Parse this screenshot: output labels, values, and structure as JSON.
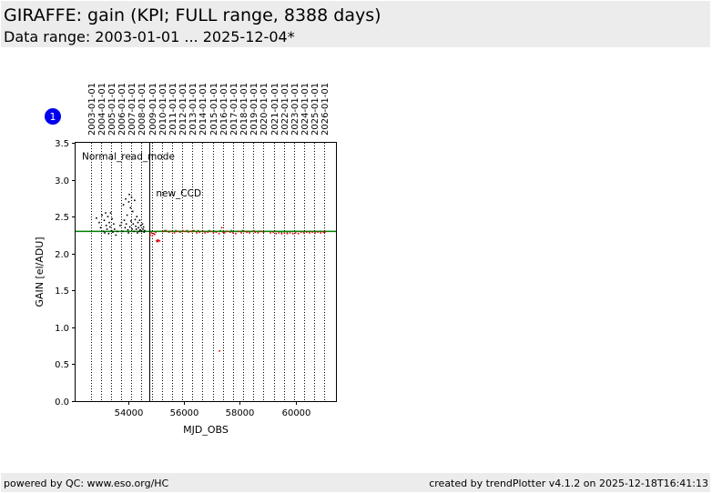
{
  "header": {
    "title": "GIRAFFE: gain (KPI; FULL range, 8388 days)",
    "subtitle": "Data range: 2003-01-01 ... 2025-12-04*"
  },
  "footer": {
    "left": "powered by QC: www.eso.org/HC",
    "right": "created by trendPlotter v4.1.2 on 2025-12-18T16:41:13"
  },
  "badge": "1",
  "chart_data": {
    "type": "scatter",
    "xlabel": "MJD_OBS",
    "ylabel": "GAIN [el/ADU]",
    "xlim": [
      52100,
      61450
    ],
    "ylim": [
      0,
      3.5
    ],
    "x_ticks": [
      54000,
      56000,
      58000,
      60000
    ],
    "y_ticks": [
      0.0,
      0.5,
      1.0,
      1.5,
      2.0,
      2.5,
      3.0,
      3.5
    ],
    "date_markers": [
      {
        "label": "2003-01-01",
        "mjd": 52640
      },
      {
        "label": "2004-01-01",
        "mjd": 53005
      },
      {
        "label": "2005-01-01",
        "mjd": 53371
      },
      {
        "label": "2006-01-01",
        "mjd": 53736
      },
      {
        "label": "2007-01-01",
        "mjd": 54101
      },
      {
        "label": "2008-01-01",
        "mjd": 54466
      },
      {
        "label": "2009-01-01",
        "mjd": 54832
      },
      {
        "label": "2010-01-01",
        "mjd": 55197
      },
      {
        "label": "2011-01-01",
        "mjd": 55562
      },
      {
        "label": "2012-01-01",
        "mjd": 55927
      },
      {
        "label": "2013-01-01",
        "mjd": 56293
      },
      {
        "label": "2014-01-01",
        "mjd": 56658
      },
      {
        "label": "2015-01-01",
        "mjd": 57023
      },
      {
        "label": "2016-01-01",
        "mjd": 57388
      },
      {
        "label": "2017-01-01",
        "mjd": 57754
      },
      {
        "label": "2018-01-01",
        "mjd": 58119
      },
      {
        "label": "2019-01-01",
        "mjd": 58484
      },
      {
        "label": "2020-01-01",
        "mjd": 58849
      },
      {
        "label": "2021-01-01",
        "mjd": 59215
      },
      {
        "label": "2022-01-01",
        "mjd": 59580
      },
      {
        "label": "2023-01-01",
        "mjd": 59945
      },
      {
        "label": "2024-01-01",
        "mjd": 60310
      },
      {
        "label": "2025-01-01",
        "mjd": 60676
      },
      {
        "label": "2026-01-01",
        "mjd": 61041
      }
    ],
    "events": [
      {
        "label": "Normal_read_mode",
        "mjd": 52100,
        "y": 3.32
      },
      {
        "label": "new_CCD",
        "mjd": 54760,
        "y": 2.82
      }
    ],
    "reference_line": {
      "y": 2.3,
      "color": "#008000"
    },
    "grid": false,
    "legend": "none",
    "series": [
      {
        "color": "#000000",
        "points": [
          [
            52850,
            2.48
          ],
          [
            52950,
            2.42
          ],
          [
            53000,
            2.35
          ],
          [
            53050,
            2.52
          ],
          [
            53100,
            2.3
          ],
          [
            53130,
            2.45
          ],
          [
            53150,
            2.28
          ],
          [
            53180,
            2.55
          ],
          [
            53200,
            2.38
          ],
          [
            53230,
            2.33
          ],
          [
            53260,
            2.5
          ],
          [
            53290,
            2.27
          ],
          [
            53310,
            2.42
          ],
          [
            53340,
            2.36
          ],
          [
            53360,
            2.55
          ],
          [
            53390,
            2.31
          ],
          [
            53410,
            2.47
          ],
          [
            53440,
            2.29
          ],
          [
            53470,
            2.4
          ],
          [
            53500,
            2.33
          ],
          [
            53550,
            2.25
          ],
          [
            53600,
            2.3
          ],
          [
            53700,
            2.38
          ],
          [
            53750,
            2.42
          ],
          [
            53800,
            2.3
          ],
          [
            53820,
            2.66
          ],
          [
            53850,
            2.45
          ],
          [
            53880,
            2.35
          ],
          [
            53900,
            2.74
          ],
          [
            53920,
            2.4
          ],
          [
            53950,
            2.52
          ],
          [
            53980,
            2.32
          ],
          [
            54000,
            2.28
          ],
          [
            54010,
            2.7
          ],
          [
            54030,
            2.8
          ],
          [
            54050,
            2.36
          ],
          [
            54070,
            2.62
          ],
          [
            54090,
            2.44
          ],
          [
            54110,
            2.76
          ],
          [
            54130,
            2.33
          ],
          [
            54150,
            2.57
          ],
          [
            54170,
            2.4
          ],
          [
            54200,
            2.3
          ],
          [
            54220,
            2.72
          ],
          [
            54240,
            2.46
          ],
          [
            54260,
            2.37
          ],
          [
            54280,
            2.33
          ],
          [
            54300,
            2.5
          ],
          [
            54320,
            2.28
          ],
          [
            54340,
            2.42
          ],
          [
            54360,
            2.35
          ],
          [
            54380,
            2.3
          ],
          [
            54400,
            2.45
          ],
          [
            54420,
            2.32
          ],
          [
            54440,
            2.38
          ],
          [
            54470,
            2.3
          ],
          [
            54500,
            2.4
          ],
          [
            54520,
            2.33
          ],
          [
            54540,
            2.36
          ],
          [
            54560,
            2.29
          ],
          [
            54580,
            2.31
          ]
        ]
      },
      {
        "color": "#dd0000",
        "points": [
          [
            54780,
            2.25
          ],
          [
            54820,
            2.28
          ],
          [
            54860,
            2.24
          ],
          [
            54900,
            2.27
          ],
          [
            54940,
            2.26
          ],
          [
            54980,
            2.29
          ],
          [
            55010,
            2.17
          ],
          [
            55030,
            2.18
          ],
          [
            55050,
            2.16
          ],
          [
            55080,
            2.18
          ],
          [
            55120,
            2.17
          ],
          [
            55250,
            2.3
          ],
          [
            55350,
            2.31
          ],
          [
            55450,
            2.29
          ],
          [
            55550,
            2.3
          ],
          [
            55650,
            2.28
          ],
          [
            55750,
            2.3
          ],
          [
            55850,
            2.29
          ],
          [
            55950,
            2.31
          ],
          [
            56050,
            2.3
          ],
          [
            56150,
            2.29
          ],
          [
            56250,
            2.3
          ],
          [
            56350,
            2.31
          ],
          [
            56450,
            2.28
          ],
          [
            56550,
            2.29
          ],
          [
            56650,
            2.3
          ],
          [
            56750,
            2.28
          ],
          [
            56850,
            2.29
          ],
          [
            56950,
            2.3
          ],
          [
            57050,
            2.28
          ],
          [
            57150,
            2.29
          ],
          [
            57250,
            2.27
          ],
          [
            57270,
            0.68
          ],
          [
            57350,
            2.35
          ],
          [
            57400,
            2.29
          ],
          [
            57450,
            2.28
          ],
          [
            57550,
            2.3
          ],
          [
            57650,
            2.29
          ],
          [
            57750,
            2.28
          ],
          [
            57850,
            2.27
          ],
          [
            57950,
            2.3
          ],
          [
            58050,
            2.28
          ],
          [
            58150,
            2.3
          ],
          [
            58250,
            2.29
          ],
          [
            58350,
            2.28
          ],
          [
            58450,
            2.3
          ],
          [
            58550,
            2.29
          ],
          [
            58650,
            2.28
          ],
          [
            58750,
            2.3
          ],
          [
            58850,
            2.29
          ],
          [
            59100,
            2.28
          ],
          [
            59200,
            2.29
          ],
          [
            59300,
            2.27
          ],
          [
            59400,
            2.28
          ],
          [
            59500,
            2.27
          ],
          [
            59600,
            2.28
          ],
          [
            59700,
            2.27
          ],
          [
            59800,
            2.28
          ],
          [
            59900,
            2.27
          ],
          [
            60000,
            2.28
          ],
          [
            60100,
            2.27
          ],
          [
            60200,
            2.29
          ],
          [
            60300,
            2.28
          ],
          [
            60400,
            2.29
          ],
          [
            60500,
            2.28
          ],
          [
            60600,
            2.29
          ],
          [
            60700,
            2.28
          ],
          [
            60800,
            2.29
          ],
          [
            60900,
            2.28
          ],
          [
            61000,
            2.29
          ],
          [
            61050,
            2.29
          ]
        ]
      },
      {
        "color": "#008000",
        "points": [
          [
            55300,
            2.31
          ],
          [
            55500,
            2.3
          ],
          [
            55700,
            2.31
          ],
          [
            55900,
            2.3
          ],
          [
            56100,
            2.31
          ],
          [
            56300,
            2.3
          ],
          [
            56500,
            2.31
          ],
          [
            56700,
            2.3
          ],
          [
            56900,
            2.31
          ],
          [
            57100,
            2.3
          ],
          [
            57300,
            2.31
          ],
          [
            57500,
            2.3
          ],
          [
            57700,
            2.31
          ],
          [
            57900,
            2.3
          ],
          [
            58100,
            2.31
          ],
          [
            58300,
            2.3
          ],
          [
            58500,
            2.31
          ],
          [
            58700,
            2.3
          ],
          [
            59300,
            2.3
          ],
          [
            59500,
            2.29
          ],
          [
            59700,
            2.29
          ],
          [
            59900,
            2.3
          ],
          [
            60100,
            2.3
          ],
          [
            60300,
            2.3
          ],
          [
            60500,
            2.3
          ],
          [
            60700,
            2.3
          ],
          [
            60900,
            2.3
          ]
        ]
      }
    ]
  }
}
